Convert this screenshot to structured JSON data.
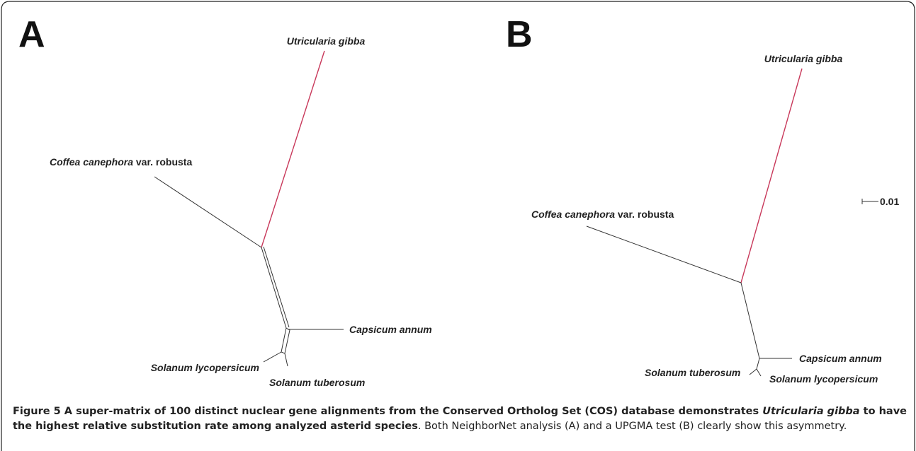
{
  "figure": {
    "panels": [
      {
        "letter": "A",
        "taxa": {
          "utricularia": [
            "Utricularia gibba"
          ],
          "coffea": [
            "Coffea canephora",
            " var. robusta"
          ],
          "capsicum": [
            "Capsicum annum"
          ],
          "lycopersicum": [
            "Solanum lycopersicum"
          ],
          "tuberosum": [
            "Solanum tuberosum"
          ]
        }
      },
      {
        "letter": "B",
        "taxa": {
          "utricularia": [
            "Utricularia gibba"
          ],
          "coffea": [
            "Coffea canephora",
            " var. robusta"
          ],
          "capsicum": [
            "Capsicum annum"
          ],
          "lycopersicum": [
            "Solanum lycopersicum"
          ],
          "tuberosum": [
            "Solanum tuberosum"
          ]
        },
        "scale": "0.01"
      }
    ],
    "caption": {
      "label": "Figure 5",
      "bold_1": " A super-matrix of 100 distinct nuclear gene alignments from the Conserved Ortholog Set (COS) database demonstrates ",
      "bold_italic": "Utricularia gibba",
      "bold_2": " to have the highest relative substitution rate among analyzed asterid species",
      "plain": ". Both NeighborNet analysis (A) and a UPGMA test (B) clearly show this asymmetry."
    }
  }
}
